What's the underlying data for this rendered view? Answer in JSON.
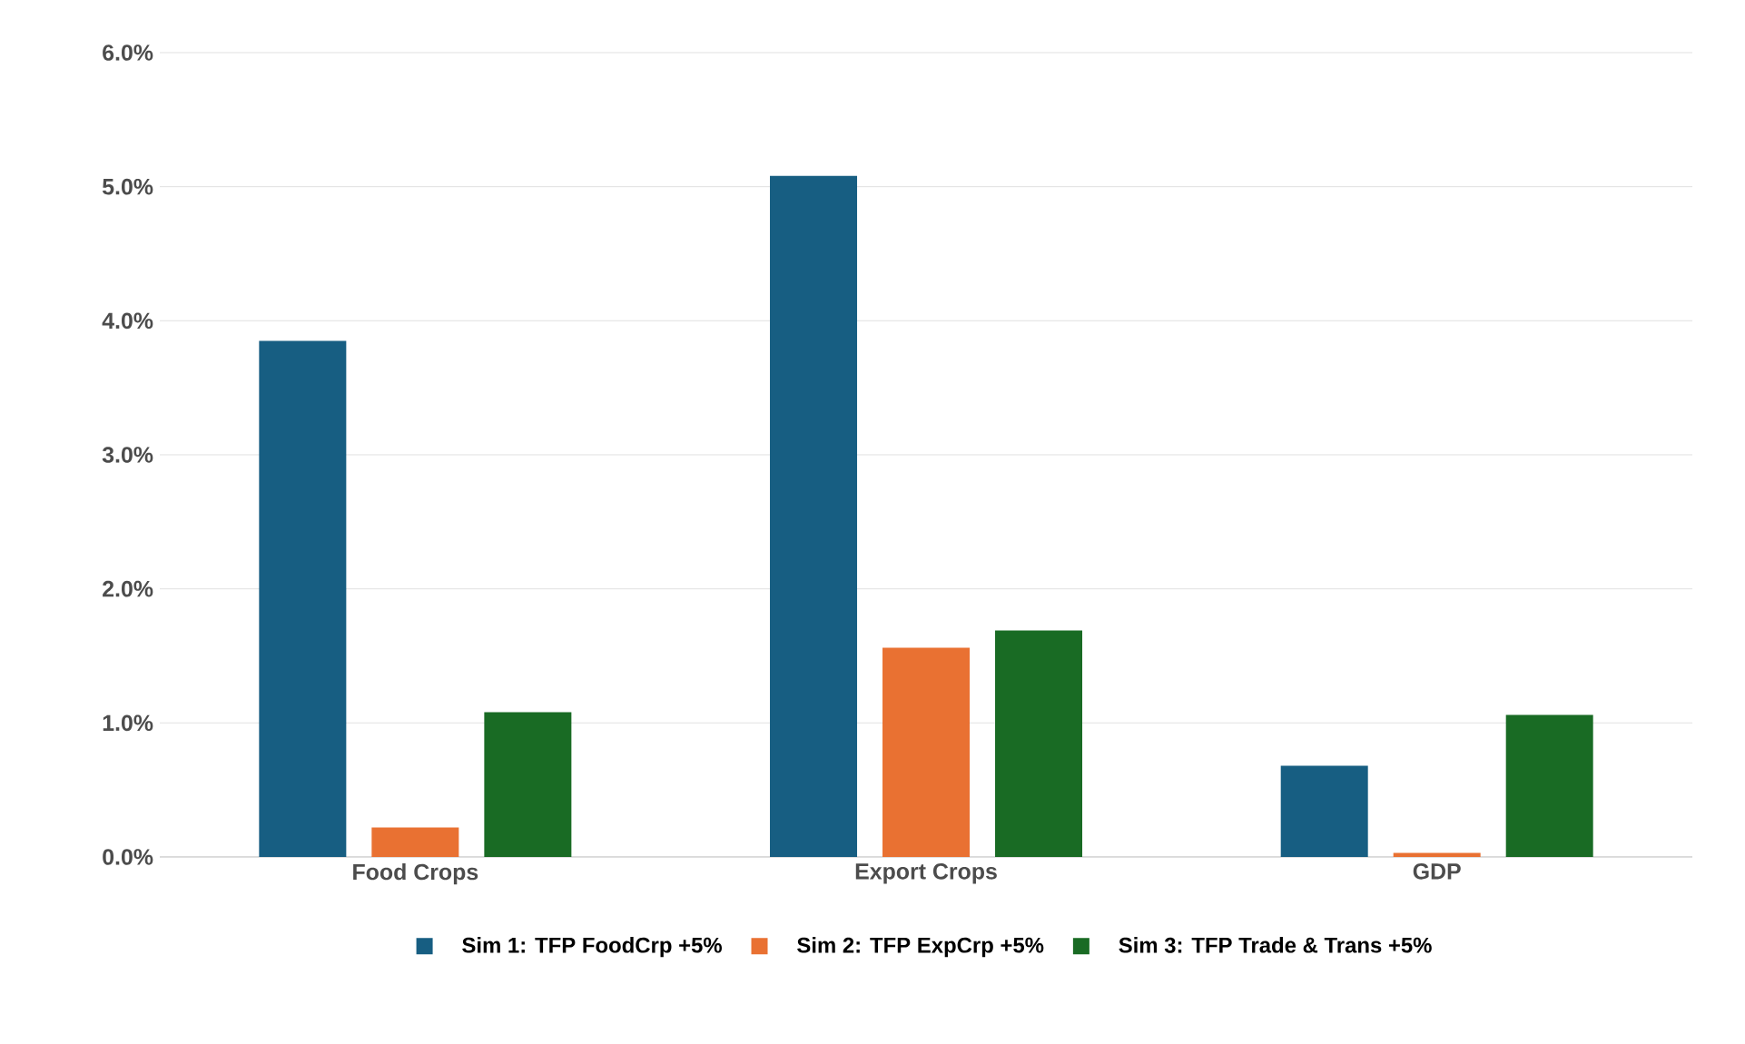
{
  "chart_data": {
    "type": "bar",
    "categories": [
      "Food Crops",
      "Export Crops",
      "GDP"
    ],
    "series": [
      {
        "name": "Sim 1: TFP  FoodCrp +5%",
        "color": "#175e82",
        "values": [
          3.85,
          5.08,
          0.68
        ]
      },
      {
        "name": "Sim 2: TFP ExpCrp +5%",
        "color": "#e97132",
        "values": [
          0.22,
          1.56,
          0.03
        ]
      },
      {
        "name": "Sim 3: TFP Trade & Trans +5%",
        "color": "#196b24",
        "values": [
          1.08,
          1.69,
          1.06
        ]
      }
    ],
    "ylim": [
      0,
      6
    ],
    "yticks": [
      {
        "value": 0,
        "label": "0.0%"
      },
      {
        "value": 1,
        "label": "1.0%"
      },
      {
        "value": 2,
        "label": "2.0%"
      },
      {
        "value": 3,
        "label": "3.0%"
      },
      {
        "value": 4,
        "label": "4.0%"
      },
      {
        "value": 5,
        "label": "5.0%"
      },
      {
        "value": 6,
        "label": "6.0%"
      }
    ],
    "grid": "y",
    "legend": "bottom"
  }
}
